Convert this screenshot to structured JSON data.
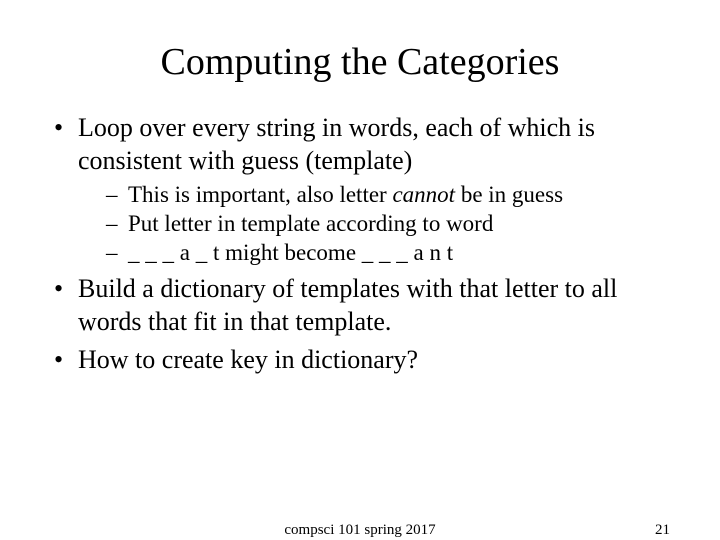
{
  "title": "Computing the Categories",
  "bullets": [
    {
      "text": "Loop over every string in words, each of which is consistent with guess (template)",
      "subitems": [
        {
          "pre": "This is important, also letter ",
          "italic": "cannot",
          "post": " be in guess"
        },
        {
          "pre": "Put letter in template according to word",
          "italic": "",
          "post": ""
        },
        {
          "pre": "_ _ _ a _ t might become _ _ _ a n t",
          "italic": "",
          "post": ""
        }
      ]
    },
    {
      "text": "Build a dictionary of templates with that letter to all words that fit in that template.",
      "subitems": []
    },
    {
      "text": "How to create key in dictionary?",
      "subitems": []
    }
  ],
  "footer": {
    "center": "compsci 101 spring 2017",
    "page": "21"
  },
  "style": {
    "background_color": "#ffffff",
    "text_color": "#000000",
    "title_fontsize": 38,
    "body_fontsize": 26,
    "sub_fontsize": 23,
    "footer_fontsize": 15,
    "font_family": "Times New Roman"
  }
}
